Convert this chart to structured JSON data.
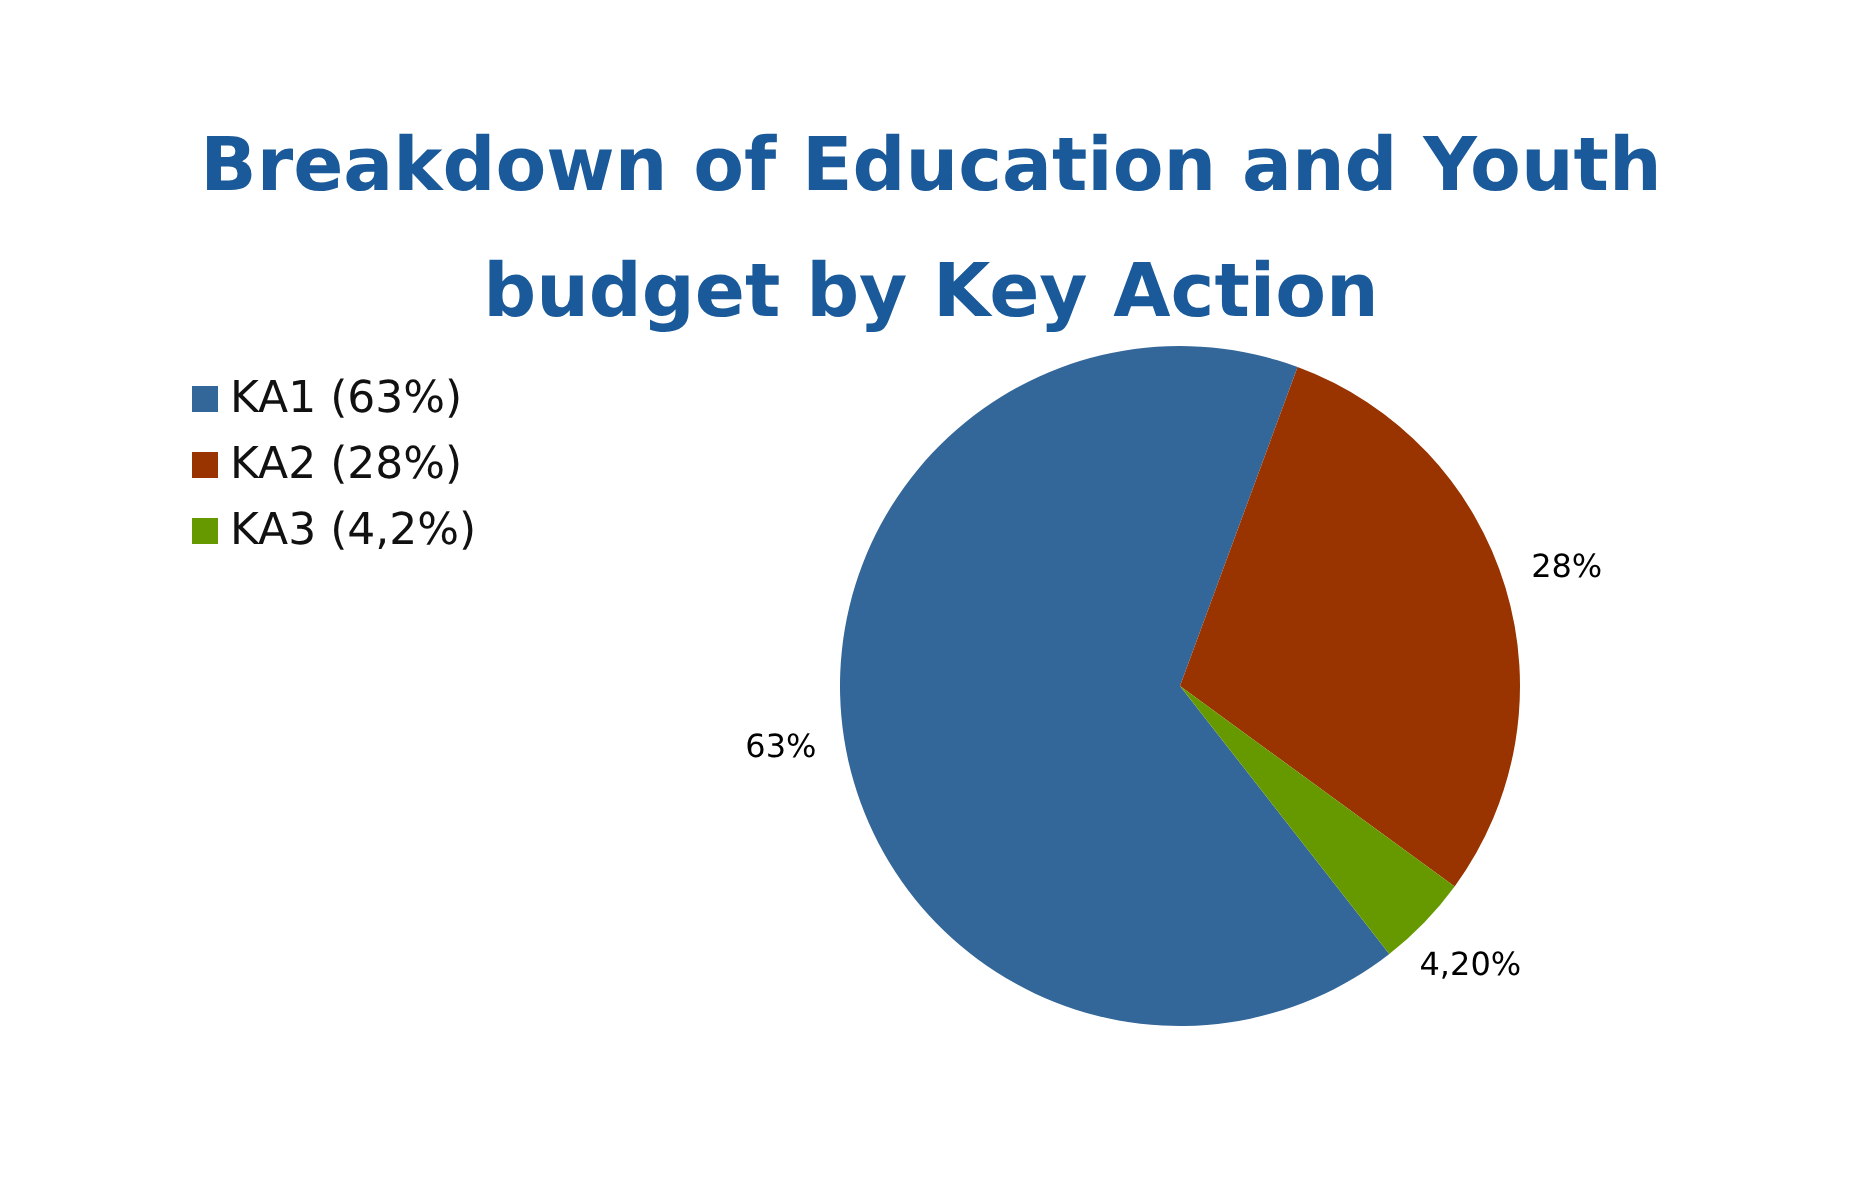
{
  "chart_data": {
    "type": "pie",
    "title": "Breakdown of Education and Youth budget by Key Action",
    "categories": [
      "KA1 (63%)",
      "KA2 (28%)",
      "KA3 (4,2%)"
    ],
    "values": [
      63,
      28,
      4.2
    ],
    "colors": [
      "#336699",
      "#993300",
      "#669900"
    ],
    "value_labels": [
      "63%",
      "28%",
      "4,20%"
    ],
    "legend": "top left"
  }
}
